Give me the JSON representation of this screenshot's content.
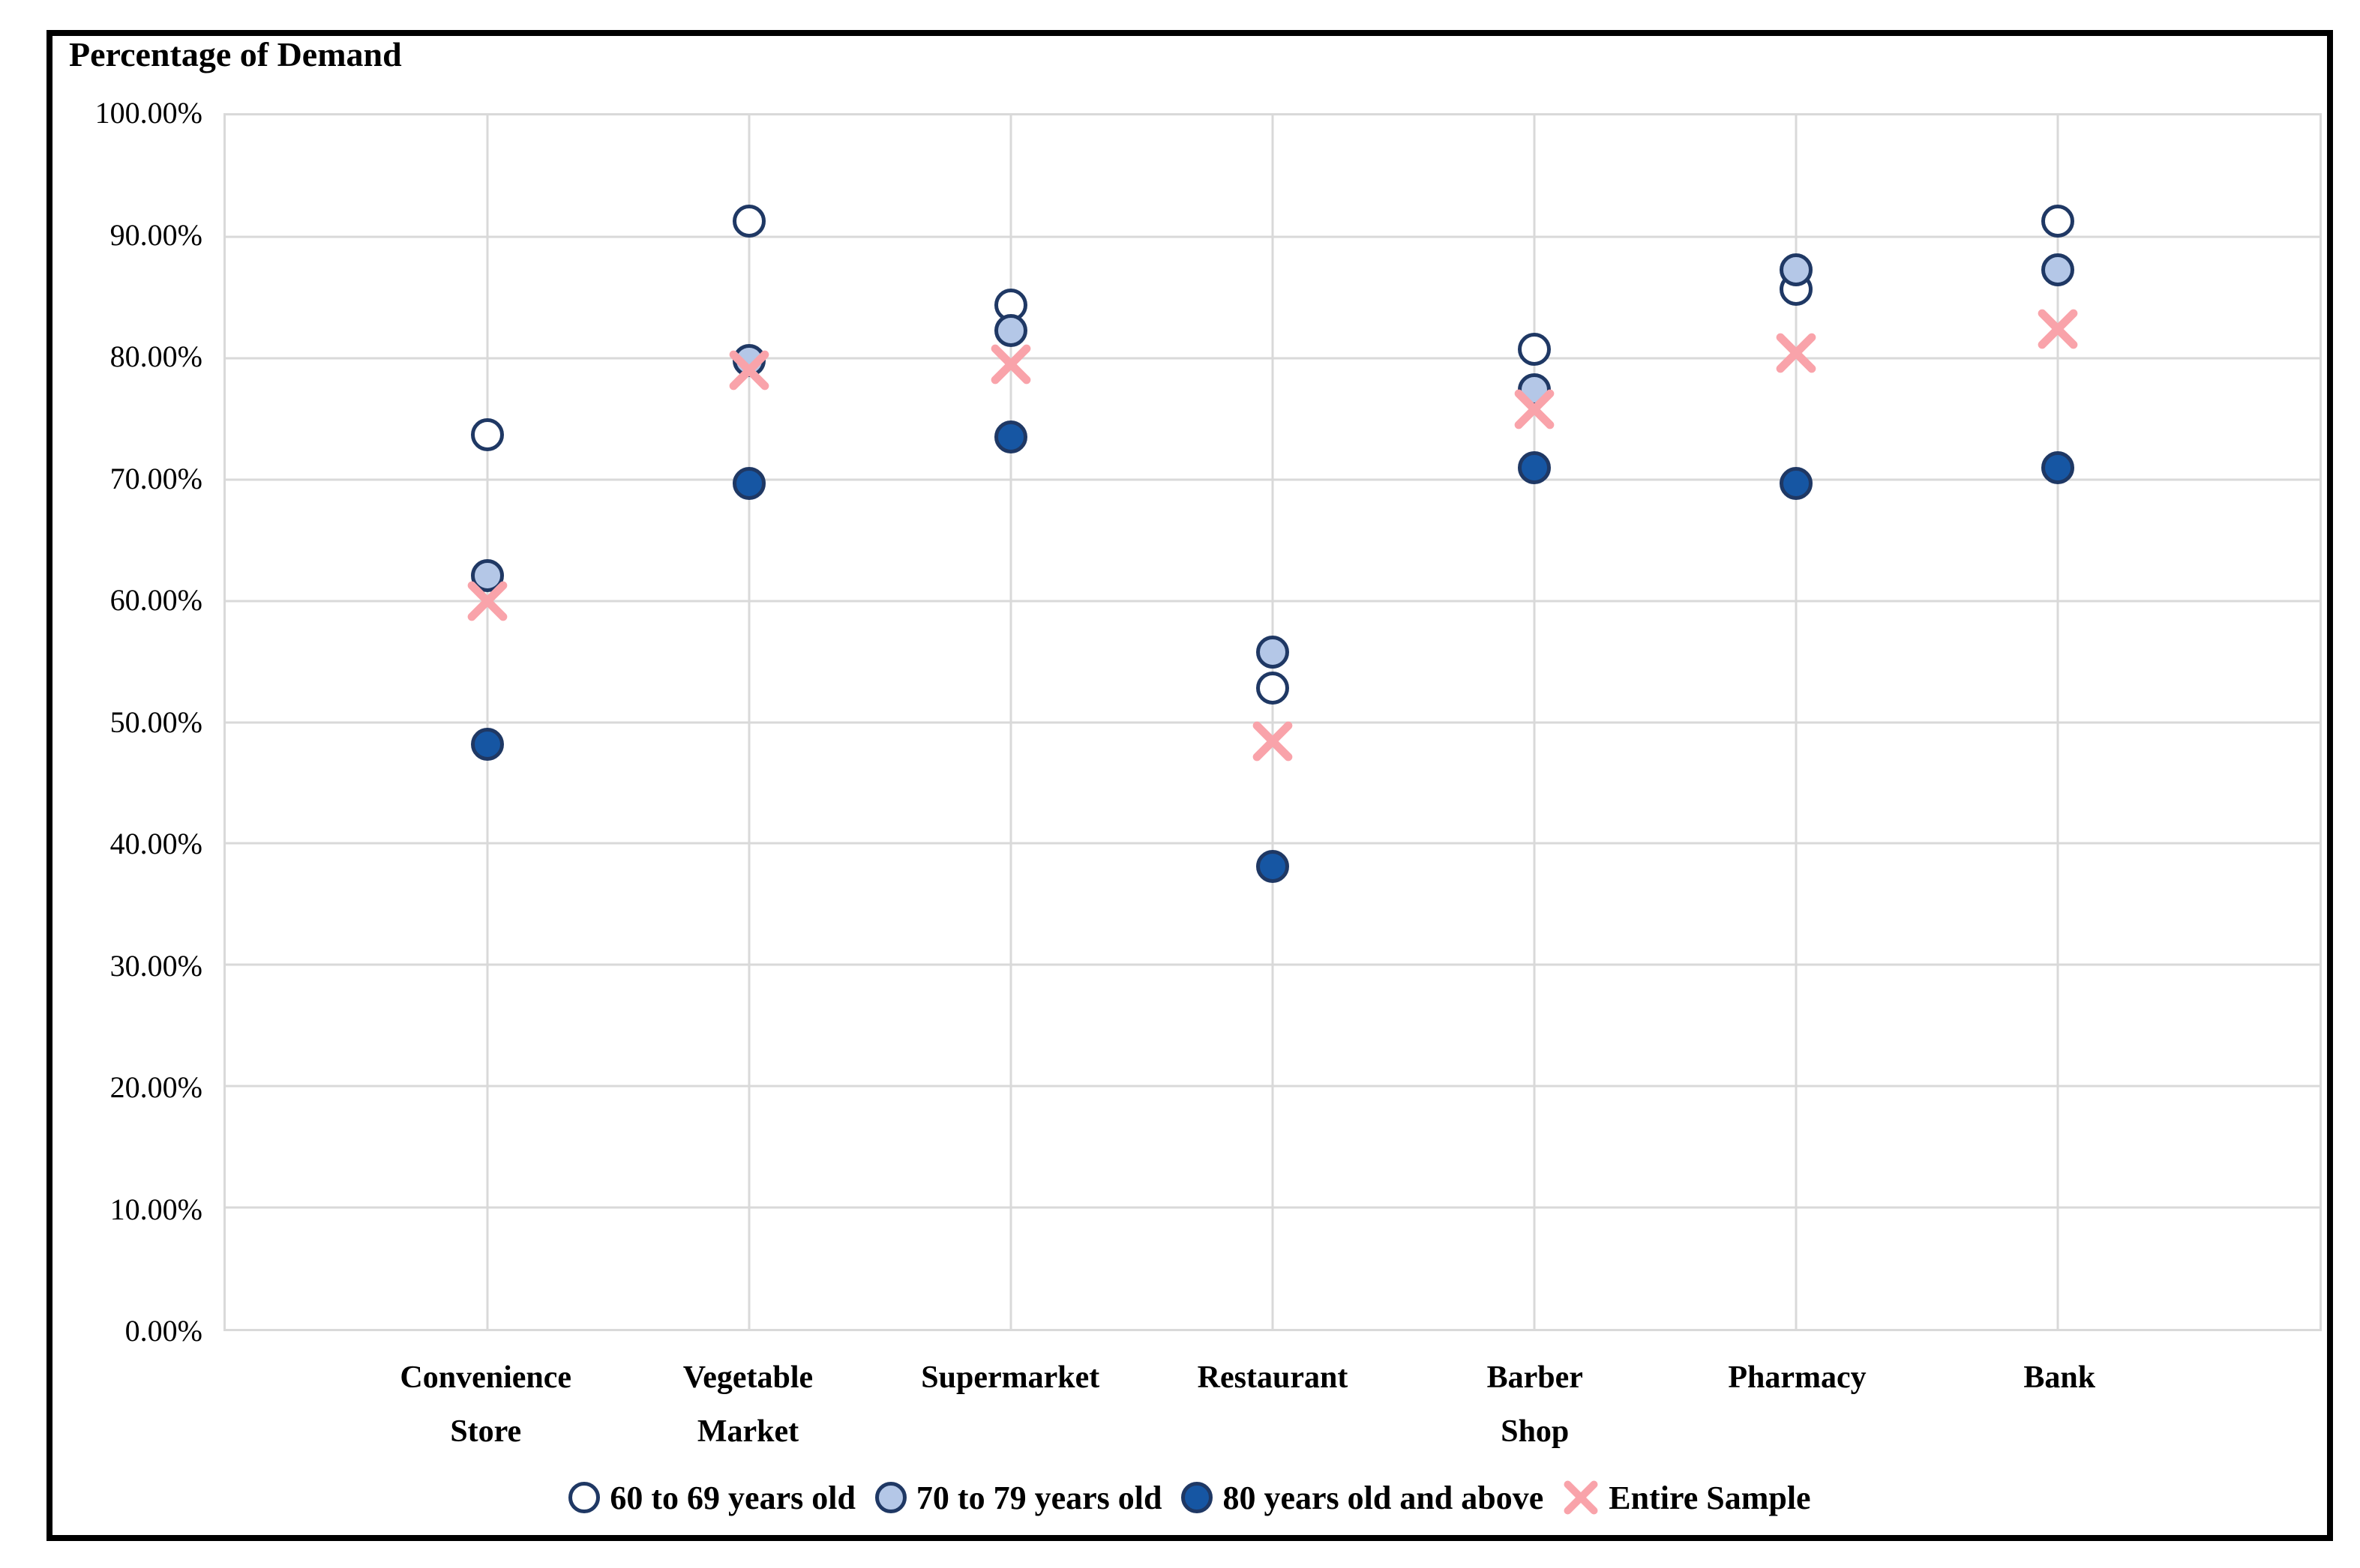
{
  "chart_data": {
    "type": "scatter",
    "title": "Percentage of Demand",
    "categories": [
      "Convenience Store",
      "Vegetable Market",
      "Supermarket",
      "Restaurant",
      "Barber Shop",
      "Pharmacy",
      "Bank"
    ],
    "category_label_lines": [
      [
        "Convenience",
        "Store"
      ],
      [
        "Vegetable",
        "Market"
      ],
      [
        "Supermarket"
      ],
      [
        "Restaurant"
      ],
      [
        "Barber",
        "Shop"
      ],
      [
        "Pharmacy"
      ],
      [
        "Bank"
      ]
    ],
    "series": [
      {
        "name": "60 to 69 years old",
        "marker": "circle",
        "fill": "#FFFFFF",
        "stroke": "#1F3864",
        "values": [
          73.7,
          91.3,
          84.4,
          52.8,
          80.7,
          85.7,
          91.3
        ]
      },
      {
        "name": "70 to 79 years old",
        "marker": "circle",
        "fill": "#B4C7E7",
        "stroke": "#1F3864",
        "values": [
          62.1,
          79.8,
          82.3,
          55.8,
          77.4,
          87.3,
          87.3
        ]
      },
      {
        "name": "80 years old and above",
        "marker": "circle",
        "fill": "#1656A3",
        "stroke": "#1F3864",
        "values": [
          48.2,
          69.7,
          73.5,
          38.1,
          71.0,
          69.7,
          71.0
        ]
      },
      {
        "name": "Entire Sample",
        "marker": "x",
        "fill": "#F9A3AA",
        "stroke": "#F9A3AA",
        "values": [
          60.0,
          79.0,
          79.5,
          48.4,
          75.8,
          80.4,
          82.4
        ]
      }
    ],
    "y_axis": {
      "min": 0,
      "max": 100,
      "step": 10,
      "ticks": [
        {
          "value": 100,
          "label": "100.00%"
        },
        {
          "value": 90,
          "label": "90.00%"
        },
        {
          "value": 80,
          "label": "80.00%"
        },
        {
          "value": 70,
          "label": "70.00%"
        },
        {
          "value": 60,
          "label": "60.00%"
        },
        {
          "value": 50,
          "label": "50.00%"
        },
        {
          "value": 40,
          "label": "40.00%"
        },
        {
          "value": 30,
          "label": "30.00%"
        },
        {
          "value": 20,
          "label": "20.00%"
        },
        {
          "value": 10,
          "label": "10.00%"
        },
        {
          "value": 0,
          "label": "0.00%"
        }
      ]
    },
    "grid": true,
    "grid_color": "#D9D9D9",
    "legend_position": "bottom",
    "frame_color": "#000000"
  }
}
